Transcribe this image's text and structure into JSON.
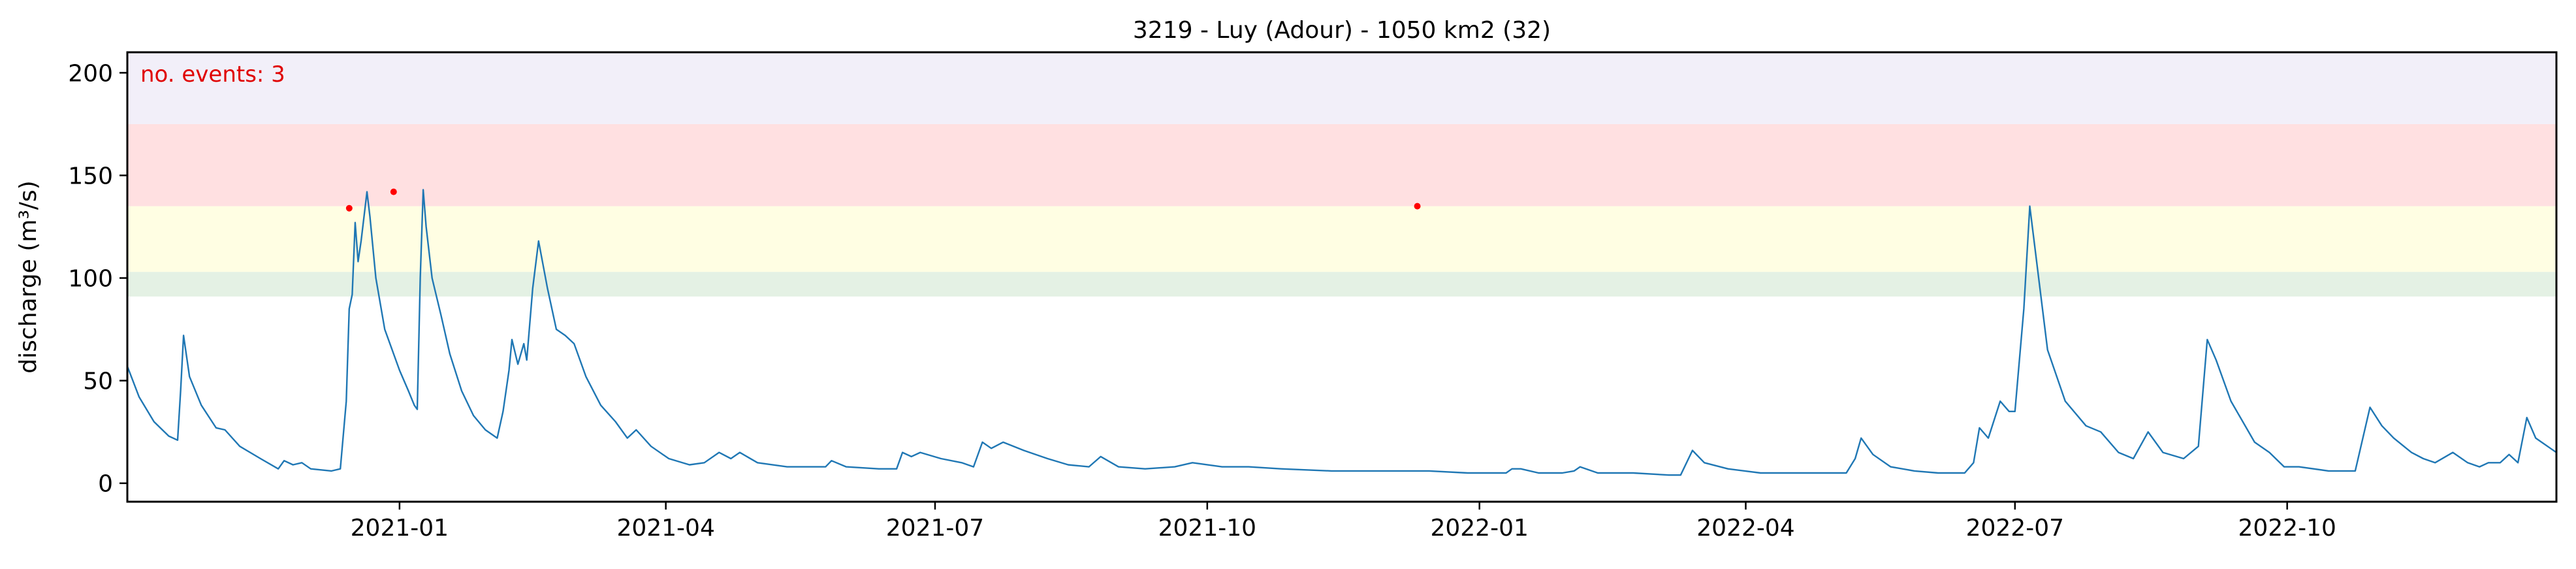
{
  "chart_data": {
    "type": "line",
    "title": "3219 - Luy (Adour) - 1050 km2 (32)",
    "xlabel": "",
    "ylabel": "discharge (m³/s)",
    "xlim": [
      "2020-10-01",
      "2022-12-31"
    ],
    "ylim": [
      -9,
      210
    ],
    "grid": false,
    "x_ticks": [
      {
        "date": "2021-01-01",
        "label": "2021-01"
      },
      {
        "date": "2021-04-01",
        "label": "2021-04"
      },
      {
        "date": "2021-07-01",
        "label": "2021-07"
      },
      {
        "date": "2021-10-01",
        "label": "2021-10"
      },
      {
        "date": "2022-01-01",
        "label": "2022-01"
      },
      {
        "date": "2022-04-01",
        "label": "2022-04"
      },
      {
        "date": "2022-07-01",
        "label": "2022-07"
      },
      {
        "date": "2022-10-01",
        "label": "2022-10"
      }
    ],
    "y_ticks": [
      0,
      50,
      100,
      150,
      200
    ],
    "annotation": {
      "text": "no. events: 3",
      "color": "#e00000"
    },
    "series_color": "#1f77b4",
    "event_color": "#ff0000",
    "threshold_bands": [
      {
        "from": 91,
        "to": 103,
        "color": "#e4f1e4"
      },
      {
        "from": 103,
        "to": 135,
        "color": "#fffee3"
      },
      {
        "from": 135,
        "to": 175,
        "color": "#ffe0e1"
      },
      {
        "from": 175,
        "to": 210,
        "color": "#f2eff9"
      }
    ],
    "events": [
      {
        "date": "2020-12-15",
        "value": 134
      },
      {
        "date": "2020-12-30",
        "value": 142
      },
      {
        "date": "2021-12-11",
        "value": 135
      }
    ],
    "series": [
      {
        "values": [
          [
            "2020-10-01",
            57
          ],
          [
            "2020-10-05",
            42
          ],
          [
            "2020-10-10",
            30
          ],
          [
            "2020-10-15",
            23
          ],
          [
            "2020-10-18",
            21
          ],
          [
            "2020-10-19",
            45
          ],
          [
            "2020-10-20",
            72
          ],
          [
            "2020-10-22",
            52
          ],
          [
            "2020-10-26",
            38
          ],
          [
            "2020-10-31",
            27
          ],
          [
            "2020-11-03",
            26
          ],
          [
            "2020-11-08",
            18
          ],
          [
            "2020-11-15",
            12
          ],
          [
            "2020-11-21",
            7
          ],
          [
            "2020-11-23",
            11
          ],
          [
            "2020-11-26",
            9
          ],
          [
            "2020-11-29",
            10
          ],
          [
            "2020-12-02",
            7
          ],
          [
            "2020-12-09",
            6
          ],
          [
            "2020-12-12",
            7
          ],
          [
            "2020-12-14",
            40
          ],
          [
            "2020-12-15",
            85
          ],
          [
            "2020-12-16",
            92
          ],
          [
            "2020-12-17",
            127
          ],
          [
            "2020-12-18",
            108
          ],
          [
            "2020-12-19",
            118
          ],
          [
            "2020-12-21",
            142
          ],
          [
            "2020-12-22",
            130
          ],
          [
            "2020-12-24",
            100
          ],
          [
            "2020-12-27",
            75
          ],
          [
            "2021-01-01",
            55
          ],
          [
            "2021-01-04",
            45
          ],
          [
            "2021-01-06",
            38
          ],
          [
            "2021-01-07",
            36
          ],
          [
            "2021-01-08",
            100
          ],
          [
            "2021-01-09",
            143
          ],
          [
            "2021-01-10",
            125
          ],
          [
            "2021-01-12",
            100
          ],
          [
            "2021-01-13",
            94
          ],
          [
            "2021-01-15",
            82
          ],
          [
            "2021-01-18",
            63
          ],
          [
            "2021-01-22",
            45
          ],
          [
            "2021-01-26",
            33
          ],
          [
            "2021-01-30",
            26
          ],
          [
            "2021-02-03",
            22
          ],
          [
            "2021-02-05",
            35
          ],
          [
            "2021-02-07",
            55
          ],
          [
            "2021-02-08",
            70
          ],
          [
            "2021-02-10",
            58
          ],
          [
            "2021-02-12",
            68
          ],
          [
            "2021-02-13",
            60
          ],
          [
            "2021-02-15",
            95
          ],
          [
            "2021-02-17",
            118
          ],
          [
            "2021-02-20",
            95
          ],
          [
            "2021-02-23",
            75
          ],
          [
            "2021-02-26",
            72
          ],
          [
            "2021-03-01",
            68
          ],
          [
            "2021-03-05",
            52
          ],
          [
            "2021-03-10",
            38
          ],
          [
            "2021-03-15",
            30
          ],
          [
            "2021-03-19",
            22
          ],
          [
            "2021-03-22",
            26
          ],
          [
            "2021-03-27",
            18
          ],
          [
            "2021-04-02",
            12
          ],
          [
            "2021-04-09",
            9
          ],
          [
            "2021-04-14",
            10
          ],
          [
            "2021-04-19",
            15
          ],
          [
            "2021-04-23",
            12
          ],
          [
            "2021-04-26",
            15
          ],
          [
            "2021-05-02",
            10
          ],
          [
            "2021-05-12",
            8
          ],
          [
            "2021-05-25",
            8
          ],
          [
            "2021-05-27",
            11
          ],
          [
            "2021-06-01",
            8
          ],
          [
            "2021-06-12",
            7
          ],
          [
            "2021-06-18",
            7
          ],
          [
            "2021-06-20",
            15
          ],
          [
            "2021-06-23",
            13
          ],
          [
            "2021-06-26",
            15
          ],
          [
            "2021-07-03",
            12
          ],
          [
            "2021-07-10",
            10
          ],
          [
            "2021-07-14",
            8
          ],
          [
            "2021-07-17",
            20
          ],
          [
            "2021-07-20",
            17
          ],
          [
            "2021-07-24",
            20
          ],
          [
            "2021-07-31",
            16
          ],
          [
            "2021-08-08",
            12
          ],
          [
            "2021-08-15",
            9
          ],
          [
            "2021-08-22",
            8
          ],
          [
            "2021-08-26",
            13
          ],
          [
            "2021-09-01",
            8
          ],
          [
            "2021-09-10",
            7
          ],
          [
            "2021-09-20",
            8
          ],
          [
            "2021-09-26",
            10
          ],
          [
            "2021-10-06",
            8
          ],
          [
            "2021-10-15",
            8
          ],
          [
            "2021-10-26",
            7
          ],
          [
            "2021-11-12",
            6
          ],
          [
            "2021-11-25",
            6
          ],
          [
            "2021-12-08",
            6
          ],
          [
            "2021-12-15",
            6
          ],
          [
            "2021-12-28",
            5
          ],
          [
            "2022-01-07",
            5
          ],
          [
            "2022-01-10",
            5
          ],
          [
            "2022-01-12",
            7
          ],
          [
            "2022-01-15",
            7
          ],
          [
            "2022-01-21",
            5
          ],
          [
            "2022-01-29",
            5
          ],
          [
            "2022-02-02",
            6
          ],
          [
            "2022-02-04",
            8
          ],
          [
            "2022-02-10",
            5
          ],
          [
            "2022-02-22",
            5
          ],
          [
            "2022-03-06",
            4
          ],
          [
            "2022-03-10",
            4
          ],
          [
            "2022-03-14",
            16
          ],
          [
            "2022-03-18",
            10
          ],
          [
            "2022-03-26",
            7
          ],
          [
            "2022-04-06",
            5
          ],
          [
            "2022-04-24",
            5
          ],
          [
            "2022-05-05",
            5
          ],
          [
            "2022-05-08",
            12
          ],
          [
            "2022-05-10",
            22
          ],
          [
            "2022-05-14",
            14
          ],
          [
            "2022-05-20",
            8
          ],
          [
            "2022-05-28",
            6
          ],
          [
            "2022-06-05",
            5
          ],
          [
            "2022-06-14",
            5
          ],
          [
            "2022-06-17",
            10
          ],
          [
            "2022-06-19",
            27
          ],
          [
            "2022-06-22",
            22
          ],
          [
            "2022-06-26",
            40
          ],
          [
            "2022-06-29",
            35
          ],
          [
            "2022-07-01",
            35
          ],
          [
            "2022-07-04",
            85
          ],
          [
            "2022-07-06",
            135
          ],
          [
            "2022-07-09",
            100
          ],
          [
            "2022-07-12",
            65
          ],
          [
            "2022-07-18",
            40
          ],
          [
            "2022-07-25",
            28
          ],
          [
            "2022-07-30",
            25
          ],
          [
            "2022-08-05",
            15
          ],
          [
            "2022-08-10",
            12
          ],
          [
            "2022-08-15",
            25
          ],
          [
            "2022-08-20",
            15
          ],
          [
            "2022-08-27",
            12
          ],
          [
            "2022-09-01",
            18
          ],
          [
            "2022-09-04",
            70
          ],
          [
            "2022-09-07",
            60
          ],
          [
            "2022-09-12",
            40
          ],
          [
            "2022-09-20",
            20
          ],
          [
            "2022-09-25",
            15
          ],
          [
            "2022-09-30",
            8
          ],
          [
            "2022-10-05",
            8
          ],
          [
            "2022-10-15",
            6
          ],
          [
            "2022-10-24",
            6
          ],
          [
            "2022-10-29",
            37
          ],
          [
            "2022-11-02",
            28
          ],
          [
            "2022-11-06",
            22
          ],
          [
            "2022-11-12",
            15
          ],
          [
            "2022-11-16",
            12
          ],
          [
            "2022-11-20",
            10
          ],
          [
            "2022-11-26",
            15
          ],
          [
            "2022-12-01",
            10
          ],
          [
            "2022-12-05",
            8
          ],
          [
            "2022-12-08",
            10
          ],
          [
            "2022-12-12",
            10
          ],
          [
            "2022-12-15",
            14
          ],
          [
            "2022-12-18",
            10
          ],
          [
            "2022-12-21",
            32
          ],
          [
            "2022-12-24",
            22
          ],
          [
            "2022-12-26",
            20
          ],
          [
            "2022-12-29",
            17
          ],
          [
            "2022-12-31",
            15
          ]
        ]
      }
    ]
  }
}
